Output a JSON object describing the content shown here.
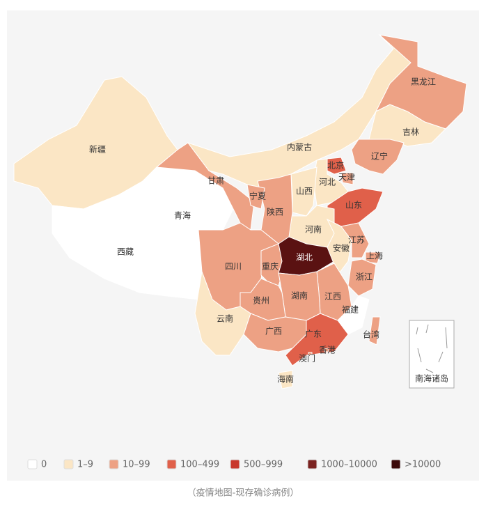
{
  "map": {
    "provinces": [
      {
        "name": "新疆",
        "color": "#fbe6c5"
      },
      {
        "name": "西藏",
        "color": "#ffffff"
      },
      {
        "name": "青海",
        "color": "#ffffff"
      },
      {
        "name": "甘肃",
        "color": "#eda184"
      },
      {
        "name": "内蒙古",
        "color": "#fbe6c5"
      },
      {
        "name": "黑龙江",
        "color": "#eda184"
      },
      {
        "name": "吉林",
        "color": "#fbe6c5"
      },
      {
        "name": "辽宁",
        "color": "#eda184"
      },
      {
        "name": "北京",
        "color": "#e0604a"
      },
      {
        "name": "天津",
        "color": "#eda184"
      },
      {
        "name": "河北",
        "color": "#fbe6c5"
      },
      {
        "name": "山西",
        "color": "#fbe6c5"
      },
      {
        "name": "山东",
        "color": "#e0604a"
      },
      {
        "name": "河南",
        "color": "#fbe6c5"
      },
      {
        "name": "陕西",
        "color": "#eda184"
      },
      {
        "name": "宁夏",
        "color": "#eda184"
      },
      {
        "name": "四川",
        "color": "#eda184"
      },
      {
        "name": "重庆",
        "color": "#eda184"
      },
      {
        "name": "湖北",
        "color": "#5a1212"
      },
      {
        "name": "安徽",
        "color": "#fbe6c5"
      },
      {
        "name": "江苏",
        "color": "#eda184"
      },
      {
        "name": "上海",
        "color": "#eda184"
      },
      {
        "name": "浙江",
        "color": "#eda184"
      },
      {
        "name": "江西",
        "color": "#eda184"
      },
      {
        "name": "湖南",
        "color": "#eda184"
      },
      {
        "name": "贵州",
        "color": "#eda184"
      },
      {
        "name": "福建",
        "color": "#ffffff"
      },
      {
        "name": "云南",
        "color": "#fbe6c5"
      },
      {
        "name": "广西",
        "color": "#eda184"
      },
      {
        "name": "广东",
        "color": "#e0604a"
      },
      {
        "name": "台湾",
        "color": "#eda184"
      },
      {
        "name": "海南",
        "color": "#fbe6c5"
      },
      {
        "name": "香港",
        "color": "#eda184"
      },
      {
        "name": "澳门",
        "color": "#eda184"
      }
    ],
    "inset_label": "南海诸岛",
    "legend": [
      {
        "label": "0",
        "color": "#ffffff"
      },
      {
        "label": "1–9",
        "color": "#fbe6c5"
      },
      {
        "label": "10–99",
        "color": "#eda184"
      },
      {
        "label": "100–499",
        "color": "#e0604a"
      },
      {
        "label": "500–999",
        "color": "#c8382d"
      },
      {
        "label": "1000–10000",
        "color": "#7a2220"
      },
      {
        "label": ">10000",
        "color": "#3c0a0a"
      }
    ],
    "caption": "（疫情地图-现存确诊病例）"
  }
}
